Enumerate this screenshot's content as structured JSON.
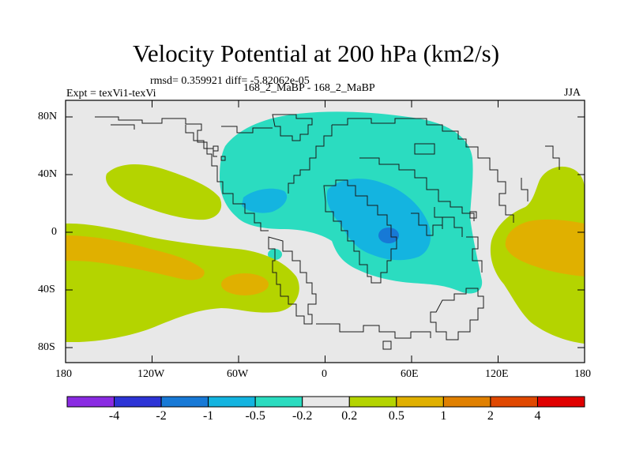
{
  "title": "Velocity Potential at 200 hPa (km2/s)",
  "stats": "rmsd= 0.359921 diff= -5.82062e-05",
  "left_label": "Expt = texVi1-texVi",
  "center_label": "168_2_MaBP - 168_2_MaBP",
  "right_label": "JJA",
  "y_ticks": [
    "80N",
    "40N",
    "0",
    "40S",
    "80S"
  ],
  "x_ticks": [
    "180",
    "120W",
    "60W",
    "0",
    "60E",
    "120E",
    "180"
  ],
  "colorbar": {
    "colors": [
      "#8a2be2",
      "#2d34d6",
      "#1779d6",
      "#14b4e0",
      "#2bdcc0",
      "#e8e8e8",
      "#b4d400",
      "#e0b000",
      "#e08000",
      "#e04800",
      "#e00000"
    ],
    "labels": [
      "-4",
      "-2",
      "-1",
      "-0.5",
      "-0.2",
      "0.2",
      "0.5",
      "1",
      "2",
      "4"
    ]
  }
}
